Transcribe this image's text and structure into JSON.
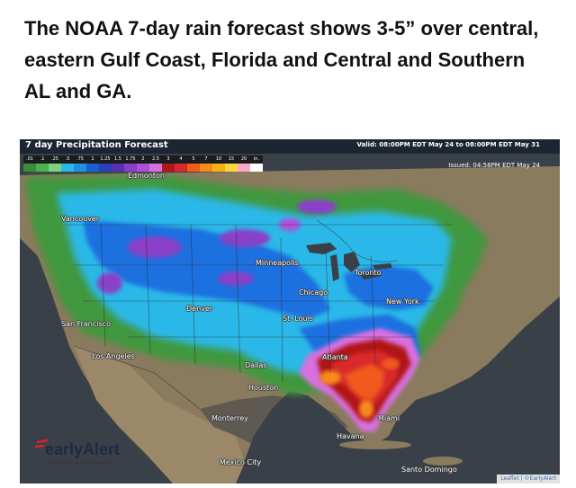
{
  "headline": "The NOAA 7-day rain forecast shows 3-5” over central, eastern Gulf Coast, Florida and Central and Southern AL and GA.",
  "map": {
    "title": "7 day Precipitation Forecast",
    "valid": "Valid: 08:00PM EDT May 24 to 08:00PM EDT May 31",
    "issued": "Issued: 04:58PM EDT May 24",
    "scale_unit": "in.",
    "scale": [
      {
        "label": ".01",
        "color": "#3c8a3c"
      },
      {
        "label": ".1",
        "color": "#4fb04f"
      },
      {
        "label": ".25",
        "color": "#7fd07f"
      },
      {
        "label": ".5",
        "color": "#2bb8e8"
      },
      {
        "label": ".75",
        "color": "#1f8fe0"
      },
      {
        "label": "1",
        "color": "#1a5fd0"
      },
      {
        "label": "1.25",
        "color": "#2a3fb8"
      },
      {
        "label": "1.5",
        "color": "#5a2fb0"
      },
      {
        "label": "1.75",
        "color": "#8a3fc8"
      },
      {
        "label": "2",
        "color": "#b04fd8"
      },
      {
        "label": "2.5",
        "color": "#d86fe0"
      },
      {
        "label": "3",
        "color": "#b01818"
      },
      {
        "label": "4",
        "color": "#d82a2a"
      },
      {
        "label": "5",
        "color": "#f05a1a"
      },
      {
        "label": "7",
        "color": "#f88a1a"
      },
      {
        "label": "10",
        "color": "#f8b01a"
      },
      {
        "label": "15",
        "color": "#f8d83a"
      },
      {
        "label": "20",
        "color": "#f8a8c8"
      },
      {
        "label": "in.",
        "color": "#ffffff"
      }
    ],
    "cities": [
      {
        "name": "Edmonton"
      },
      {
        "name": "Vancouver"
      },
      {
        "name": "Minneapolis"
      },
      {
        "name": "Toronto"
      },
      {
        "name": "Chicago"
      },
      {
        "name": "New York"
      },
      {
        "name": "Denver"
      },
      {
        "name": "St. Louis"
      },
      {
        "name": "San Francisco"
      },
      {
        "name": "Atlanta"
      },
      {
        "name": "Los Angeles"
      },
      {
        "name": "Dallas"
      },
      {
        "name": "Houston"
      },
      {
        "name": "Monterrey"
      },
      {
        "name": "Miami"
      },
      {
        "name": "Havana"
      },
      {
        "name": "Mexico City"
      },
      {
        "name": "Santo Domingo"
      }
    ],
    "logo": {
      "name": "earlyAlert",
      "tagline": "real-time emergency management"
    },
    "attribution": "Leaflet | ©EarlyAlert"
  }
}
